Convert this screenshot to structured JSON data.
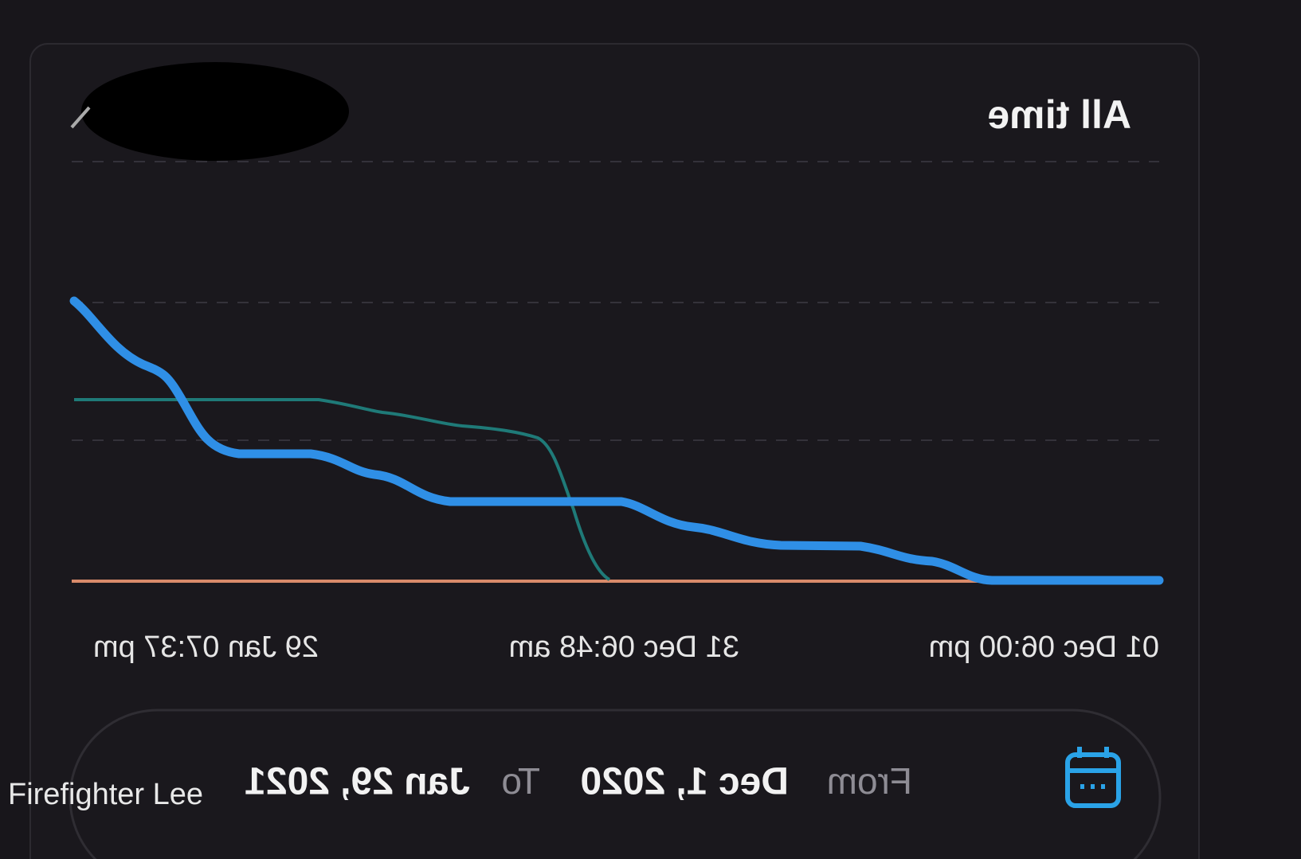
{
  "card": {
    "range": "All time",
    "x_labels": [
      "29 Jan 07:37 pm",
      "31 Dec 06:48 am",
      "01 Dec 06:00 pm"
    ],
    "date_range": {
      "from_label": "From",
      "from": "Dec 1, 2020",
      "to_label": "To",
      "to": "Jan 29, 2021"
    }
  },
  "watermark": "Firefighter Lee"
}
